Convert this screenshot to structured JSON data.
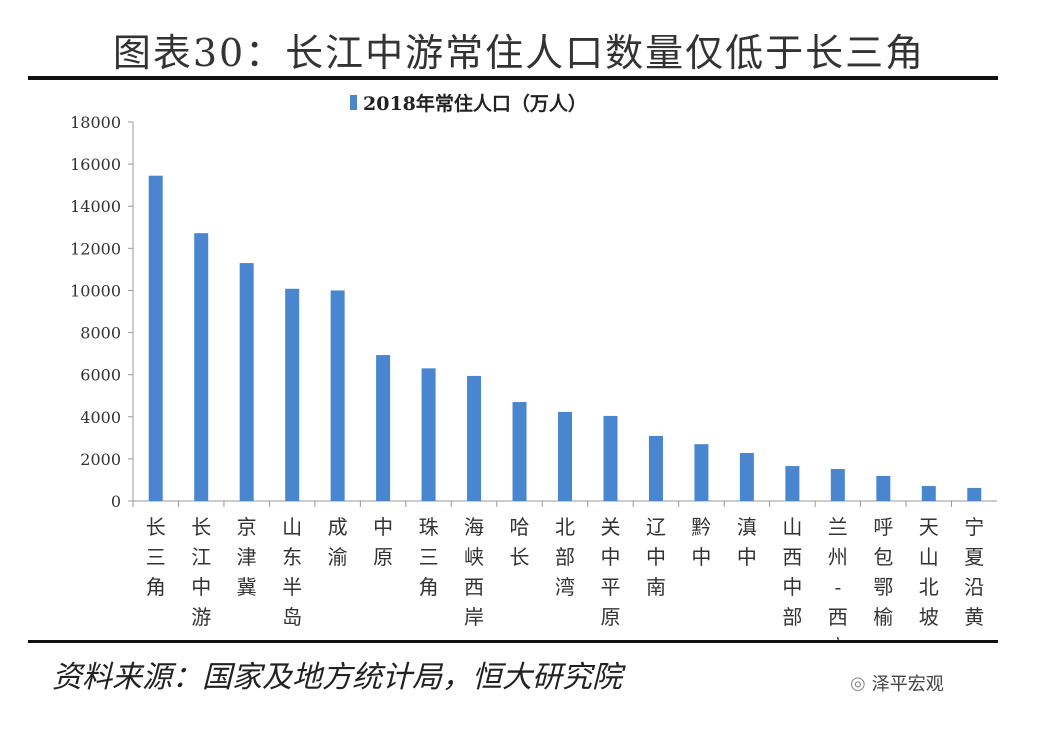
{
  "header": {
    "title": "图表30：长江中游常住人口数量仅低于长三角"
  },
  "footer": {
    "source": "资料来源：国家及地方统计局，恒大研究院",
    "watermark": "泽平宏观"
  },
  "chart_data": {
    "type": "bar",
    "title": "",
    "xlabel": "",
    "ylabel": "",
    "ylim": [
      0,
      18000
    ],
    "yticks": [
      0,
      2000,
      4000,
      6000,
      8000,
      10000,
      12000,
      14000,
      16000,
      18000
    ],
    "legend_position": "top",
    "bar_color": "#4a86d0",
    "categories": [
      "长三角",
      "长江中游",
      "京津冀",
      "山东半岛",
      "成渝",
      "中原",
      "珠三角",
      "海峡西岸",
      "哈长",
      "北部湾",
      "关中平原",
      "辽中南",
      "黔中",
      "滇中",
      "山西中部",
      "兰州-西宁",
      "呼包鄂榆",
      "天山北坡",
      "宁夏沿黄"
    ],
    "series": [
      {
        "name": "2018年常住人口（万人）",
        "values": [
          15450,
          12720,
          11300,
          10080,
          10000,
          6930,
          6300,
          5940,
          4700,
          4230,
          4040,
          3090,
          2700,
          2280,
          1660,
          1520,
          1190,
          710,
          620
        ]
      }
    ]
  }
}
